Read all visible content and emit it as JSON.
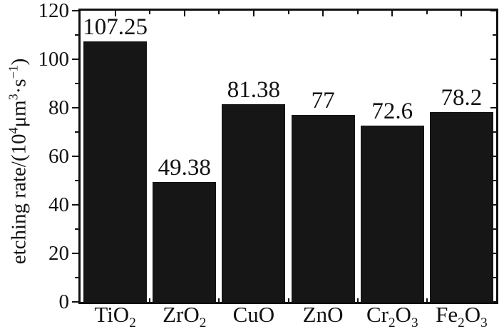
{
  "figure": {
    "background": "#ffffff",
    "ink_color": "#111111"
  },
  "chart_data": {
    "type": "bar",
    "title": "",
    "xlabel": "",
    "ylabel": "etching rate/(10⁴μm³·s⁻¹)",
    "ylabel_rich": [
      {
        "t": "etching rate/(10"
      },
      {
        "t": "4",
        "s": "sup"
      },
      {
        "t": "μm"
      },
      {
        "t": "3",
        "s": "sup"
      },
      {
        "t": "·s"
      },
      {
        "t": "−1",
        "s": "sup"
      },
      {
        "t": ")"
      }
    ],
    "categories": [
      "TiO2",
      "ZrO2",
      "CuO",
      "ZnO",
      "Cr2O3",
      "Fe2O3"
    ],
    "categories_rich": [
      [
        {
          "t": "TiO"
        },
        {
          "t": "2",
          "s": "sub"
        }
      ],
      [
        {
          "t": "ZrO"
        },
        {
          "t": "2",
          "s": "sub"
        }
      ],
      [
        {
          "t": "CuO"
        }
      ],
      [
        {
          "t": "ZnO"
        }
      ],
      [
        {
          "t": "Cr"
        },
        {
          "t": "2",
          "s": "sub"
        },
        {
          "t": "O"
        },
        {
          "t": "3",
          "s": "sub"
        }
      ],
      [
        {
          "t": "Fe"
        },
        {
          "t": "2",
          "s": "sub"
        },
        {
          "t": "O"
        },
        {
          "t": "3",
          "s": "sub"
        }
      ]
    ],
    "values": [
      107.25,
      49.38,
      81.38,
      77,
      72.6,
      78.2
    ],
    "value_labels": [
      "107.25",
      "49.38",
      "81.38",
      "77",
      "72.6",
      "78.2"
    ],
    "ylim": [
      0,
      120
    ],
    "yticks": [
      0,
      20,
      40,
      60,
      80,
      100,
      120
    ],
    "ytick_minor": [
      10,
      30,
      50,
      70,
      90,
      110
    ],
    "bar_color": "#161616",
    "grid": false,
    "legend": null
  }
}
